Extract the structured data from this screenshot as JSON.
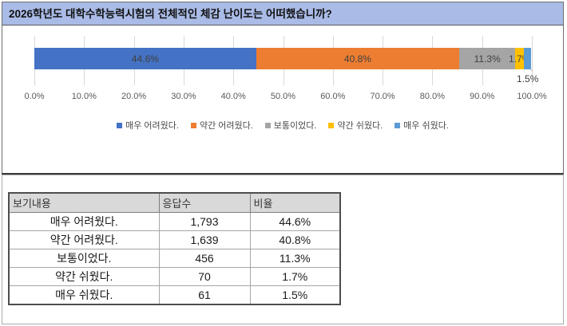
{
  "header": {
    "title": "2026학년도 대학수학능력시험의 전체적인 체감 난이도는 어떠했습니까?"
  },
  "chart_data": {
    "type": "bar",
    "subtype": "horizontal-stacked-100pct",
    "title": "2026학년도 대학수학능력시험의 전체적인 체감 난이도는 어떠했습니까?",
    "xlim": [
      0,
      100
    ],
    "x_ticks": [
      "0.0%",
      "10.0%",
      "20.0%",
      "30.0%",
      "40.0%",
      "50.0%",
      "60.0%",
      "70.0%",
      "80.0%",
      "90.0%",
      "100.0%"
    ],
    "grid": true,
    "legend_position": "bottom",
    "series": [
      {
        "name": "매우 어려웠다.",
        "pct": 44.6,
        "label": "44.6%",
        "count": 1793,
        "color": "#4472C4"
      },
      {
        "name": "약간 어려웠다.",
        "pct": 40.8,
        "label": "40.8%",
        "count": 1639,
        "color": "#ED7D31"
      },
      {
        "name": "보통이었다.",
        "pct": 11.3,
        "label": "11.3%",
        "count": 456,
        "color": "#A5A5A5"
      },
      {
        "name": "약간 쉬웠다.",
        "pct": 1.7,
        "label": "1.7%",
        "count": 70,
        "color": "#FFC000"
      },
      {
        "name": "매우 쉬웠다.",
        "pct": 1.5,
        "label": "1.5%",
        "count": 61,
        "color": "#5B9BD5"
      }
    ]
  },
  "table": {
    "headers": [
      "보기내용",
      "응답수",
      "비율"
    ],
    "rows": [
      {
        "label": "매우 어려웠다.",
        "count": "1,793",
        "pct": "44.6%"
      },
      {
        "label": "약간 어려웠다.",
        "count": "1,639",
        "pct": "40.8%"
      },
      {
        "label": "보통이었다.",
        "count": "456",
        "pct": "11.3%"
      },
      {
        "label": "약간 쉬웠다.",
        "count": "70",
        "pct": "1.7%"
      },
      {
        "label": "매우 쉬웠다.",
        "count": "61",
        "pct": "1.5%"
      }
    ]
  },
  "colors": {
    "title_bg": "#A9BBE6",
    "gridline": "#D9D9D9",
    "axis_text": "#595959",
    "data_label_text": "#404040",
    "table_header_bg": "#D9D9D9"
  }
}
